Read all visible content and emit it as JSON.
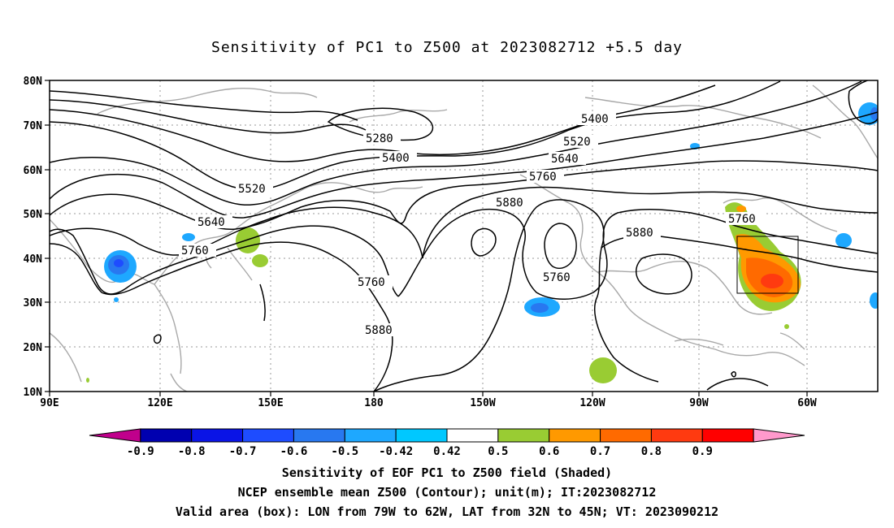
{
  "title": "Sensitivity of PC1 to Z500 at 2023082712 +5.5 day",
  "axes": {
    "lat_ticks": [
      "80N",
      "70N",
      "60N",
      "50N",
      "40N",
      "30N",
      "20N",
      "10N"
    ],
    "lon_ticks": [
      "90E",
      "120E",
      "150E",
      "180",
      "150W",
      "120W",
      "90W",
      "60W"
    ]
  },
  "contours": {
    "labels": [
      "5280",
      "5400",
      "5400",
      "5520",
      "5520",
      "5640",
      "5640",
      "5760",
      "5760",
      "5760",
      "5760",
      "5880",
      "5880",
      "5880",
      "5760"
    ],
    "color": "#000000"
  },
  "valid_box": {
    "lon_from": "79W",
    "lon_to": "62W",
    "lat_from": "32N",
    "lat_to": "45N"
  },
  "colorbar": {
    "colors": [
      "#c0008c",
      "#0000b0",
      "#0a14e6",
      "#1e4cff",
      "#2878f0",
      "#1ea8ff",
      "#00c8ff",
      "#ffffff",
      "#99cc33",
      "#ff9900",
      "#ff6a00",
      "#ff3a10",
      "#ff0000",
      "#ff99cc"
    ],
    "labels": [
      "-0.9",
      "-0.8",
      "-0.7",
      "-0.6",
      "-0.5",
      "-0.42",
      "0.42",
      "0.5",
      "0.6",
      "0.7",
      "0.8",
      "0.9"
    ]
  },
  "caption": {
    "line1": "Sensitivity of EOF PC1 to Z500 field (Shaded)",
    "line2": "NCEP ensemble mean Z500 (Contour); unit(m); IT:2023082712",
    "line3": "Valid area (box): LON from 79W to 62W, LAT from 32N to 45N; VT: 2023090212"
  }
}
